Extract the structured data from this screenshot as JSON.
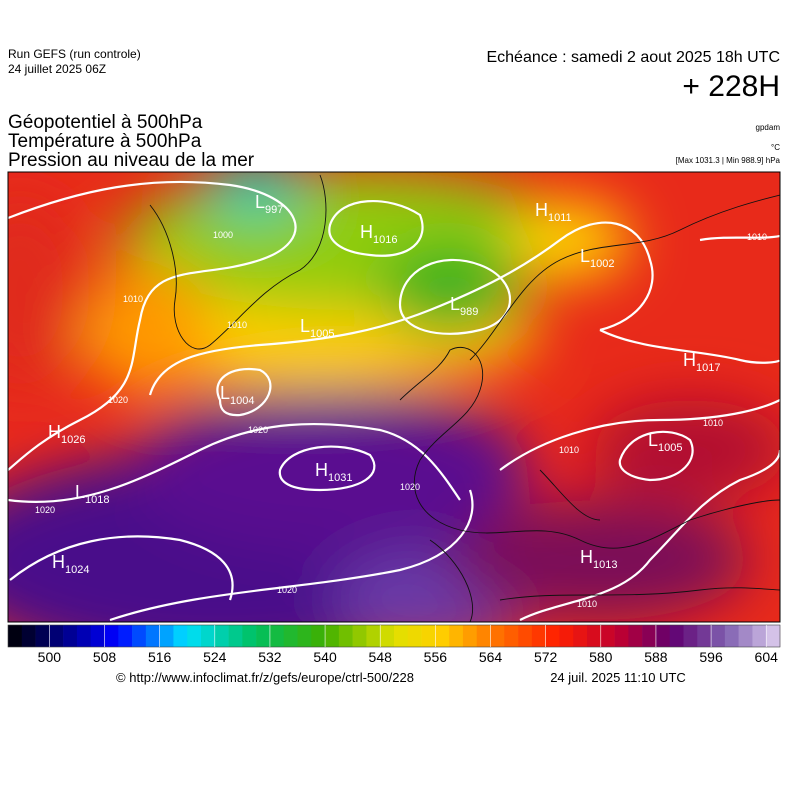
{
  "header": {
    "run": "Run GEFS (run controle)",
    "run_date": "24 juillet 2025 06Z",
    "valid": "Echéance : samedi 2 aout 2025 18h UTC",
    "lead": "+ 228H"
  },
  "titles": [
    "Géopotentiel à 500hPa",
    "Température à 500hPa",
    "Pression au niveau de la mer"
  ],
  "units": {
    "geopotential": "gpdam",
    "temperature": "°C",
    "pressure": "[Max 1031.3 | Min 988.9] hPa"
  },
  "centers": [
    {
      "type": "L",
      "value": 997
    },
    {
      "type": "H",
      "value": 1016
    },
    {
      "type": "L",
      "value": 989
    },
    {
      "type": "H",
      "value": 1011
    },
    {
      "type": "L",
      "value": 1002
    },
    {
      "type": "L",
      "value": 1005
    },
    {
      "type": "H",
      "value": 1017
    },
    {
      "type": "L",
      "value": 1004
    },
    {
      "type": "H",
      "value": 1026
    },
    {
      "type": "L",
      "value": 1005
    },
    {
      "type": "H",
      "value": 1031
    },
    {
      "type": "L",
      "value": 1018
    },
    {
      "type": "H",
      "value": 1024
    },
    {
      "type": "H",
      "value": 1013
    }
  ],
  "isobar_labels": [
    1010,
    1000,
    1010,
    1010,
    1020,
    1020,
    1010,
    1010,
    1020,
    1020,
    1020,
    1010
  ],
  "colorbar": {
    "range": [
      494,
      606
    ],
    "ticks": [
      500,
      508,
      516,
      524,
      532,
      540,
      548,
      556,
      564,
      572,
      580,
      588,
      596,
      604
    ]
  },
  "footer": {
    "source": "© http://www.infoclimat.fr/z/gefs/europe/ctrl-500/228",
    "generated": "24 juil. 2025 11:10 UTC"
  }
}
